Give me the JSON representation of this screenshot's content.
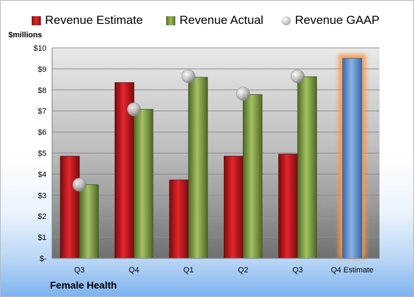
{
  "chart_data": {
    "type": "bar",
    "title": "",
    "ylabel": "$millions",
    "xlabel": "",
    "footer": "Female Health",
    "categories": [
      "Q3",
      "Q4",
      "Q1",
      "Q2",
      "Q3",
      "Q4 Estimate"
    ],
    "ylim": [
      0,
      10
    ],
    "yticks": [
      "$-",
      "$1",
      "$2",
      "$3",
      "$4",
      "$5",
      "$6",
      "$7",
      "$8",
      "$9",
      "$10"
    ],
    "grid": true,
    "legend": "top",
    "series": [
      {
        "name": "Revenue Estimate",
        "type": "bar",
        "color": "#c0161d",
        "values": [
          4.85,
          8.35,
          3.72,
          4.85,
          4.95,
          null
        ]
      },
      {
        "name": "Revenue Actual",
        "type": "bar",
        "color": "#76923c",
        "values": [
          3.5,
          7.08,
          8.6,
          7.78,
          8.63,
          9.5
        ]
      },
      {
        "name": "Revenue GAAP",
        "type": "marker",
        "color": "#b8b8b8",
        "values": [
          3.5,
          7.08,
          8.65,
          7.82,
          8.65,
          null
        ]
      }
    ],
    "highlight": {
      "category_index": 5,
      "color": "#4f81bd",
      "glow": "#f79646"
    }
  }
}
